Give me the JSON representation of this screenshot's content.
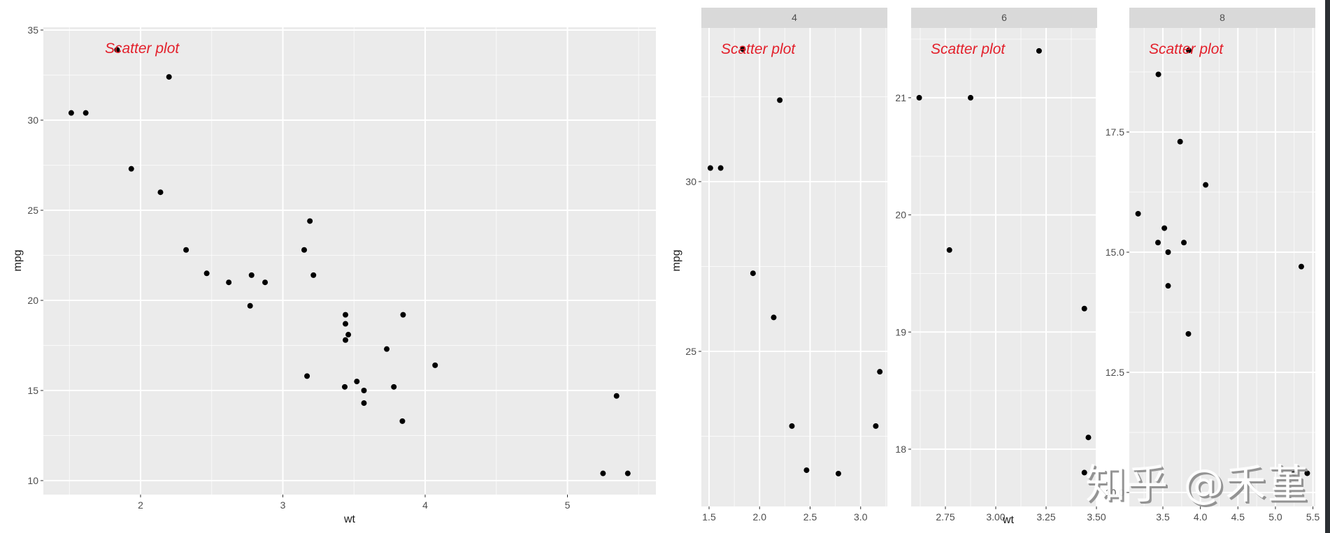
{
  "watermark": "知乎 @禾堇",
  "colors": {
    "panel_bg": "#ebebeb",
    "grid": "#ffffff",
    "strip_bg": "#d9d9d9",
    "point": "#000000",
    "annotation": "#e3202b",
    "axis_text": "#4d4d4d",
    "title_text": "#1a1a1a"
  },
  "chart_data": [
    {
      "type": "scatter",
      "title": "",
      "annotation": "Scatter plot",
      "xlabel": "wt",
      "ylabel": "mpg",
      "xlim": [
        1.3,
        5.6
      ],
      "ylim": [
        9.2,
        35.2
      ],
      "xticks": [
        2,
        3,
        4,
        5
      ],
      "yticks": [
        10,
        15,
        20,
        25,
        30,
        35
      ],
      "grid": true,
      "points": [
        [
          2.62,
          21.0
        ],
        [
          2.875,
          21.0
        ],
        [
          2.32,
          22.8
        ],
        [
          3.215,
          21.4
        ],
        [
          3.44,
          18.7
        ],
        [
          3.46,
          18.1
        ],
        [
          3.57,
          14.3
        ],
        [
          3.19,
          24.4
        ],
        [
          3.15,
          22.8
        ],
        [
          3.44,
          19.2
        ],
        [
          3.44,
          17.8
        ],
        [
          4.07,
          16.4
        ],
        [
          3.73,
          17.3
        ],
        [
          3.78,
          15.2
        ],
        [
          5.25,
          10.4
        ],
        [
          5.424,
          10.4
        ],
        [
          5.345,
          14.7
        ],
        [
          2.2,
          32.4
        ],
        [
          1.615,
          30.4
        ],
        [
          1.835,
          33.9
        ],
        [
          2.465,
          21.5
        ],
        [
          3.52,
          15.5
        ],
        [
          3.435,
          15.2
        ],
        [
          3.84,
          13.3
        ],
        [
          3.845,
          19.2
        ],
        [
          1.935,
          27.3
        ],
        [
          2.14,
          26.0
        ],
        [
          1.513,
          30.4
        ],
        [
          3.17,
          15.8
        ],
        [
          2.77,
          19.7
        ],
        [
          3.57,
          15.0
        ],
        [
          2.78,
          21.4
        ]
      ]
    },
    {
      "type": "scatter",
      "facet_by": "cyl",
      "annotation": "Scatter plot",
      "xlabel": "wt",
      "ylabel": "mpg",
      "grid": true,
      "panels": [
        {
          "strip": "4",
          "xlim": [
            1.43,
            3.27
          ],
          "ylim": [
            21.0,
            35.4
          ],
          "xticks": [
            "1.5",
            "2.0",
            "2.5",
            "3.0"
          ],
          "yticks": [
            "25",
            "30"
          ],
          "points": [
            [
              2.32,
              22.8
            ],
            [
              3.19,
              24.4
            ],
            [
              3.15,
              22.8
            ],
            [
              2.2,
              32.4
            ],
            [
              1.615,
              30.4
            ],
            [
              1.835,
              33.9
            ],
            [
              2.465,
              21.5
            ],
            [
              1.935,
              27.3
            ],
            [
              2.14,
              26.0
            ],
            [
              1.513,
              30.4
            ],
            [
              2.78,
              21.4
            ]
          ]
        },
        {
          "strip": "6",
          "xlim": [
            2.59,
            3.49
          ],
          "ylim": [
            17.5,
            21.5
          ],
          "xticks": [
            "2.75",
            "3.00",
            "3.25",
            "3.50"
          ],
          "yticks": [
            "18",
            "19",
            "20",
            "21"
          ],
          "points": [
            [
              2.62,
              21.0
            ],
            [
              2.875,
              21.0
            ],
            [
              3.215,
              21.4
            ],
            [
              3.46,
              18.1
            ],
            [
              3.44,
              19.2
            ],
            [
              3.44,
              17.8
            ],
            [
              2.77,
              19.7
            ]
          ]
        },
        {
          "strip": "8",
          "xlim": [
            3.11,
            5.52
          ],
          "ylim": [
            10.0,
            19.5
          ],
          "xticks": [
            "3.5",
            "4.0",
            "4.5",
            "5.0",
            "5.5"
          ],
          "yticks": [
            "10.0",
            "12.5",
            "15.0",
            "17.5"
          ],
          "points": [
            [
              3.44,
              18.7
            ],
            [
              3.57,
              14.3
            ],
            [
              4.07,
              16.4
            ],
            [
              3.73,
              17.3
            ],
            [
              3.78,
              15.2
            ],
            [
              5.25,
              10.4
            ],
            [
              5.424,
              10.4
            ],
            [
              5.345,
              14.7
            ],
            [
              3.52,
              15.5
            ],
            [
              3.435,
              15.2
            ],
            [
              3.84,
              13.3
            ],
            [
              3.845,
              19.2
            ],
            [
              3.17,
              15.8
            ],
            [
              3.57,
              15.0
            ]
          ]
        }
      ]
    }
  ]
}
